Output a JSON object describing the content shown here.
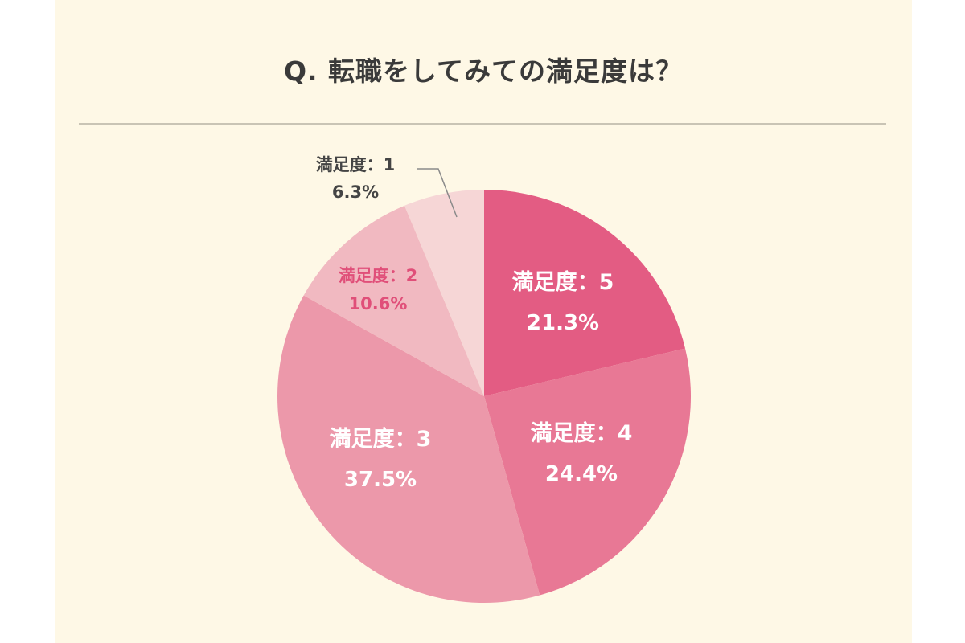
{
  "chart_data": {
    "type": "pie",
    "title": "Q. 転職をしてみての満足度は？",
    "start": "12 o'clock",
    "direction": "clockwise",
    "slices": [
      {
        "name": "満足度：5",
        "value": 21.3,
        "value_label": "21.3%",
        "color": "#e35c83",
        "text_color": "#ffffff"
      },
      {
        "name": "満足度：4",
        "value": 24.4,
        "value_label": "24.4%",
        "color": "#e87895",
        "text_color": "#ffffff"
      },
      {
        "name": "満足度：3",
        "value": 37.5,
        "value_label": "37.5%",
        "color": "#ec98aa",
        "text_color": "#ffffff"
      },
      {
        "name": "満足度：2",
        "value": 10.6,
        "value_label": "10.6%",
        "color": "#f1b9c1",
        "text_color": "#e04f79"
      },
      {
        "name": "満足度：1",
        "value": 6.3,
        "value_label": "6.3%",
        "color": "#f6d6d6",
        "text_color": "#444444"
      }
    ]
  }
}
